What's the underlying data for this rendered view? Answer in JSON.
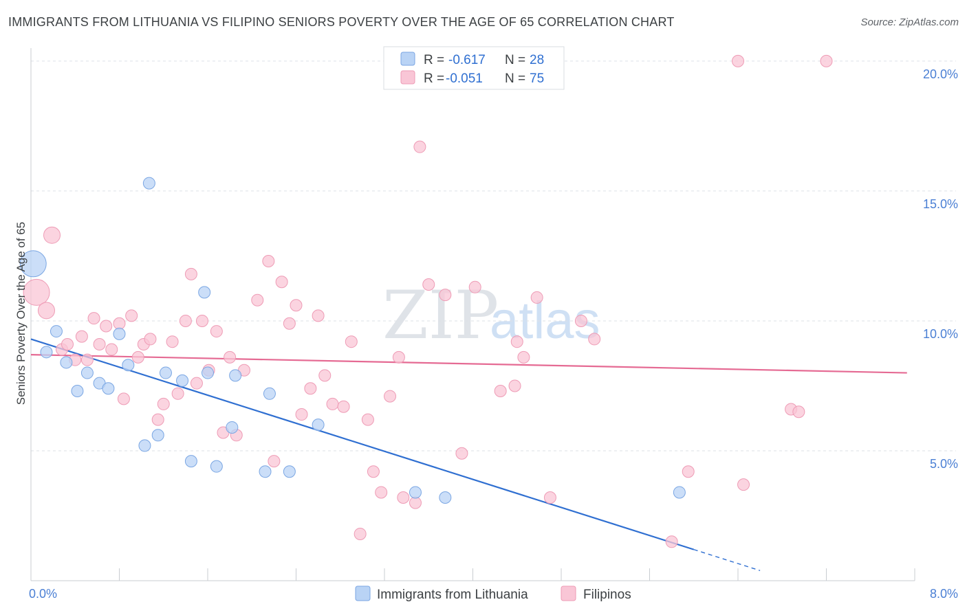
{
  "header": {
    "title": "IMMIGRANTS FROM LITHUANIA VS FILIPINO SENIORS POVERTY OVER THE AGE OF 65 CORRELATION CHART",
    "source": "Source: ZipAtlas.com"
  },
  "watermark": {
    "zip": "ZIP",
    "atlas": "atlas"
  },
  "colors": {
    "blue_fill": "#b9d3f5",
    "blue_stroke": "#7aa6e3",
    "blue_line": "#2f6fd1",
    "pink_fill": "#f9c6d6",
    "pink_stroke": "#ee9bb5",
    "pink_line": "#e56a93"
  },
  "stats_legend": {
    "rows": [
      {
        "r_label": "R = ",
        "r_value": "-0.617",
        "n_label": "N = ",
        "n_value": "28"
      },
      {
        "r_label": "R = ",
        "r_value": "-0.051",
        "n_label": "N = ",
        "n_value": "75"
      }
    ]
  },
  "bottom_legend": {
    "items": [
      "Immigrants from Lithuania",
      "Filipinos"
    ]
  },
  "chart_data": {
    "type": "scatter",
    "title": "IMMIGRANTS FROM LITHUANIA VS FILIPINO SENIORS POVERTY OVER THE AGE OF 65 CORRELATION CHART",
    "xlabel": "",
    "ylabel": "Seniors Poverty Over the Age of 65",
    "xlim": [
      0,
      8
    ],
    "ylim": [
      0,
      20.5
    ],
    "x_tick_labels": [
      {
        "value": 0,
        "label": "0.0%"
      },
      {
        "value": 8,
        "label": "8.0%"
      }
    ],
    "y_tick_labels": [
      {
        "value": 5,
        "label": "5.0%"
      },
      {
        "value": 10,
        "label": "10.0%"
      },
      {
        "value": 15,
        "label": "15.0%"
      },
      {
        "value": 20,
        "label": "20.0%"
      }
    ],
    "series": [
      {
        "name": "Immigrants from Lithuania",
        "color": "#b9d3f5",
        "trend": {
          "x0": 0.0,
          "y0": 9.3,
          "x1": 6.0,
          "y1": 1.2,
          "dash_to_x": 6.6
        },
        "points": [
          [
            0.02,
            12.2,
            3
          ],
          [
            0.14,
            8.8,
            1
          ],
          [
            0.23,
            9.6,
            1
          ],
          [
            0.32,
            8.4,
            1
          ],
          [
            0.42,
            7.3,
            1
          ],
          [
            0.51,
            8.0,
            1
          ],
          [
            0.62,
            7.6,
            1
          ],
          [
            0.7,
            7.4,
            1
          ],
          [
            0.8,
            9.5,
            1
          ],
          [
            0.88,
            8.3,
            1
          ],
          [
            1.03,
            5.2,
            1
          ],
          [
            1.07,
            15.3,
            1
          ],
          [
            1.15,
            5.6,
            1
          ],
          [
            1.22,
            8.0,
            1
          ],
          [
            1.37,
            7.7,
            1
          ],
          [
            1.45,
            4.6,
            1
          ],
          [
            1.57,
            11.1,
            1
          ],
          [
            1.6,
            8.0,
            1
          ],
          [
            1.68,
            4.4,
            1
          ],
          [
            1.82,
            5.9,
            1
          ],
          [
            1.85,
            7.9,
            1
          ],
          [
            2.12,
            4.2,
            1
          ],
          [
            2.16,
            7.2,
            1
          ],
          [
            2.34,
            4.2,
            1
          ],
          [
            2.6,
            6.0,
            1
          ],
          [
            3.48,
            3.4,
            1
          ],
          [
            3.75,
            3.2,
            1
          ],
          [
            5.87,
            3.4,
            1
          ]
        ]
      },
      {
        "name": "Filipinos",
        "color": "#f9c6d6",
        "trend": {
          "x0": 0.0,
          "y0": 8.7,
          "x1": 7.93,
          "y1": 8.0
        },
        "points": [
          [
            0.05,
            11.1,
            3
          ],
          [
            0.14,
            10.4,
            2
          ],
          [
            0.19,
            13.3,
            2
          ],
          [
            0.28,
            8.9,
            1
          ],
          [
            0.33,
            9.1,
            1
          ],
          [
            0.4,
            8.5,
            1
          ],
          [
            0.46,
            9.4,
            1
          ],
          [
            0.51,
            8.5,
            1
          ],
          [
            0.57,
            10.1,
            1
          ],
          [
            0.62,
            9.1,
            1
          ],
          [
            0.68,
            9.8,
            1
          ],
          [
            0.73,
            8.9,
            1
          ],
          [
            0.8,
            9.9,
            1
          ],
          [
            0.84,
            7.0,
            1
          ],
          [
            0.91,
            10.2,
            1
          ],
          [
            0.97,
            8.6,
            1
          ],
          [
            1.02,
            9.1,
            1
          ],
          [
            1.08,
            9.3,
            1
          ],
          [
            1.15,
            6.2,
            1
          ],
          [
            1.2,
            6.8,
            1
          ],
          [
            1.28,
            9.2,
            1
          ],
          [
            1.33,
            7.2,
            1
          ],
          [
            1.4,
            10.0,
            1
          ],
          [
            1.45,
            11.8,
            1
          ],
          [
            1.5,
            7.6,
            1
          ],
          [
            1.55,
            10.0,
            1
          ],
          [
            1.61,
            8.1,
            1
          ],
          [
            1.68,
            9.6,
            1
          ],
          [
            1.74,
            5.7,
            1
          ],
          [
            1.8,
            8.6,
            1
          ],
          [
            1.86,
            5.6,
            1
          ],
          [
            1.93,
            8.1,
            1
          ],
          [
            2.05,
            10.8,
            1
          ],
          [
            2.15,
            12.3,
            1
          ],
          [
            2.2,
            4.6,
            1
          ],
          [
            2.27,
            11.5,
            1
          ],
          [
            2.34,
            9.9,
            1
          ],
          [
            2.4,
            10.6,
            1
          ],
          [
            2.45,
            6.4,
            1
          ],
          [
            2.53,
            7.4,
            1
          ],
          [
            2.6,
            10.2,
            1
          ],
          [
            2.66,
            7.9,
            1
          ],
          [
            2.73,
            6.8,
            1
          ],
          [
            2.83,
            6.7,
            1
          ],
          [
            2.9,
            9.2,
            1
          ],
          [
            2.98,
            1.8,
            1
          ],
          [
            3.05,
            6.2,
            1
          ],
          [
            3.1,
            4.2,
            1
          ],
          [
            3.17,
            3.4,
            1
          ],
          [
            3.25,
            7.1,
            1
          ],
          [
            3.33,
            8.6,
            1
          ],
          [
            3.37,
            3.2,
            1
          ],
          [
            3.48,
            3.0,
            1
          ],
          [
            3.52,
            16.7,
            1
          ],
          [
            3.6,
            11.4,
            1
          ],
          [
            3.75,
            11.0,
            1
          ],
          [
            3.9,
            4.9,
            1
          ],
          [
            4.02,
            11.3,
            1
          ],
          [
            4.25,
            7.3,
            1
          ],
          [
            4.38,
            7.5,
            1
          ],
          [
            4.4,
            9.2,
            1
          ],
          [
            4.46,
            8.6,
            1
          ],
          [
            4.58,
            10.9,
            1
          ],
          [
            4.7,
            3.2,
            1
          ],
          [
            4.98,
            10.0,
            1
          ],
          [
            5.1,
            9.3,
            1
          ],
          [
            5.8,
            1.5,
            1
          ],
          [
            5.95,
            4.2,
            1
          ],
          [
            6.4,
            20.0,
            1
          ],
          [
            6.45,
            3.7,
            1
          ],
          [
            6.88,
            6.6,
            1
          ],
          [
            6.95,
            6.5,
            1
          ],
          [
            7.2,
            20.0,
            1
          ]
        ]
      }
    ]
  }
}
